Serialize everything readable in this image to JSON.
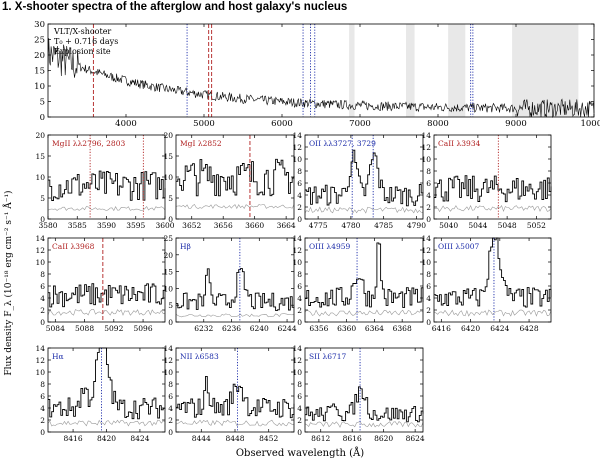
{
  "heading": "1. X-shooter spectra of the afterglow and host galaxy's nucleus",
  "ylabel": "Flux density F_λ (10⁻¹⁸ erg cm⁻² s⁻¹ Å⁻¹)",
  "xlabel": "Observed wavelength (Å)",
  "colors": {
    "trace": "#000000",
    "blue_line": "#1a2aa8",
    "red_line": "#b02020",
    "gray_trace": "#9a9a9a",
    "telluric": "#e8e8e8"
  },
  "chart_data": [
    {
      "type": "line",
      "id": "overview",
      "legend": [
        "VLT/X-shooter",
        "T₀ + 0.716 days",
        "Explosion site"
      ],
      "xlim": [
        3000,
        10000
      ],
      "ylim": [
        0,
        30
      ],
      "xticks": [
        4000,
        5000,
        6000,
        7000,
        8000,
        9000,
        10000
      ],
      "yticks": [
        0,
        5,
        10,
        15,
        20,
        25,
        30
      ],
      "telluric_bands": [
        [
          6860,
          6930
        ],
        [
          7590,
          7700
        ],
        [
          8130,
          8350
        ],
        [
          8950,
          9800
        ]
      ],
      "blue_lines": [
        4783,
        6270,
        6365,
        6420,
        8419,
        8447
      ],
      "red_lines": [
        3582,
        5060,
        5098
      ]
    },
    {
      "type": "line",
      "label": "MgII λλ2796, 2803",
      "label_color": "red",
      "xlim": [
        3580,
        3600
      ],
      "ylim": [
        0,
        20
      ],
      "xticks": [
        3580,
        3585,
        3590,
        3595,
        3600
      ],
      "yticks": [
        0,
        5,
        10,
        15,
        20
      ],
      "red_lines": [
        3587.2,
        3596.3
      ],
      "red_style": "dotted",
      "continuum": 8,
      "lines": []
    },
    {
      "type": "line",
      "label": "MgI λ2852",
      "label_color": "red",
      "xlim": [
        3650,
        3665
      ],
      "ylim": [
        0,
        20
      ],
      "xticks": [
        3652,
        3656,
        3660,
        3664
      ],
      "yticks": [
        0,
        5,
        10,
        15,
        20
      ],
      "red_lines": [
        3659.4
      ],
      "red_style": "dashed",
      "continuum": 10,
      "lines": []
    },
    {
      "type": "line",
      "label": "OII λλ3727, 3729",
      "label_color": "blue",
      "xlim": [
        4773,
        4791
      ],
      "ylim": [
        0,
        14
      ],
      "xticks": [
        4775,
        4780,
        4785,
        4790
      ],
      "yticks": [
        0,
        2,
        4,
        6,
        8,
        10,
        12,
        14
      ],
      "blue_lines": [
        4780.2,
        4783.4
      ],
      "continuum": 4,
      "lines": [
        [
          4780.2,
          6,
          0.6
        ],
        [
          4783.4,
          6.5,
          0.6
        ]
      ]
    },
    {
      "type": "line",
      "label": "CaII λ3934",
      "label_color": "red",
      "xlim": [
        5038,
        5054
      ],
      "ylim": [
        0,
        14
      ],
      "xticks": [
        5040,
        5044,
        5048,
        5052
      ],
      "yticks": [
        0,
        2,
        4,
        6,
        8,
        10,
        12,
        14
      ],
      "red_lines": [
        5046.8
      ],
      "red_style": "dotted",
      "continuum": 5,
      "lines": []
    },
    {
      "type": "line",
      "label": "CaII λ3968",
      "label_color": "red",
      "xlim": [
        5083,
        5099
      ],
      "ylim": [
        0,
        14
      ],
      "xticks": [
        5084,
        5088,
        5092,
        5096
      ],
      "yticks": [
        0,
        2,
        4,
        6,
        8,
        10,
        12,
        14
      ],
      "red_lines": [
        5090.5
      ],
      "red_style": "dashed",
      "continuum": 4.5,
      "lines": []
    },
    {
      "type": "line",
      "label": "Hβ",
      "label_color": "blue",
      "xlim": [
        6228,
        6245
      ],
      "ylim": [
        0,
        25
      ],
      "xticks": [
        6232,
        6236,
        6240,
        6244
      ],
      "yticks": [
        0,
        5,
        10,
        15,
        20,
        25
      ],
      "blue_lines": [
        6237.2
      ],
      "continuum": 6,
      "lines": [
        [
          6237.2,
          8,
          0.6
        ],
        [
          6232.5,
          12,
          0.2
        ]
      ]
    },
    {
      "type": "line",
      "label": "OIII λ4959",
      "label_color": "blue",
      "xlim": [
        6354,
        6371
      ],
      "ylim": [
        0,
        14
      ],
      "xticks": [
        6356,
        6360,
        6364,
        6368
      ],
      "yticks": [
        0,
        2,
        4,
        6,
        8,
        10,
        12,
        14
      ],
      "blue_lines": [
        6361.5
      ],
      "continuum": 4,
      "lines": [
        [
          6361.5,
          4,
          0.6
        ],
        [
          6364.5,
          9,
          0.3
        ]
      ]
    },
    {
      "type": "line",
      "label": "OIII λ5007",
      "label_color": "blue",
      "xlim": [
        6415,
        6431
      ],
      "ylim": [
        0,
        14
      ],
      "xticks": [
        6416,
        6420,
        6424,
        6428
      ],
      "yticks": [
        0,
        2,
        4,
        6,
        8,
        10,
        12,
        14
      ],
      "blue_lines": [
        6423.2
      ],
      "continuum": 4,
      "lines": [
        [
          6423.2,
          11,
          0.7
        ]
      ]
    },
    {
      "type": "line",
      "label": "Hα",
      "label_color": "blue",
      "xlim": [
        8413,
        8427
      ],
      "ylim": [
        0,
        14
      ],
      "xticks": [
        8416,
        8420,
        8424
      ],
      "yticks": [
        0,
        2,
        4,
        6,
        8,
        10,
        12,
        14
      ],
      "blue_lines": [
        8419.4
      ],
      "continuum": 4,
      "lines": [
        [
          8419.4,
          11,
          0.7
        ],
        [
          8417.2,
          3,
          0.4
        ]
      ]
    },
    {
      "type": "line",
      "label": "NII λ6583",
      "label_color": "blue",
      "xlim": [
        8441,
        8455
      ],
      "ylim": [
        0,
        14
      ],
      "xticks": [
        8444,
        8448,
        8452
      ],
      "yticks": [
        0,
        2,
        4,
        6,
        8,
        10,
        12,
        14
      ],
      "blue_lines": [
        8448.3
      ],
      "continuum": 4,
      "lines": [
        [
          8448.3,
          4,
          0.6
        ],
        [
          8444.6,
          4,
          0.3
        ]
      ]
    },
    {
      "type": "line",
      "label": "SII λ6717",
      "label_color": "blue",
      "xlim": [
        8610,
        8625
      ],
      "ylim": [
        0,
        14
      ],
      "xticks": [
        8612,
        8616,
        8620,
        8624
      ],
      "yticks": [
        0,
        2,
        4,
        6,
        8,
        10,
        12,
        14
      ],
      "blue_lines": [
        8617.0
      ],
      "continuum": 3,
      "lines": [
        [
          8617.0,
          4,
          0.6
        ],
        [
          8613.8,
          2,
          0.3
        ]
      ]
    }
  ]
}
